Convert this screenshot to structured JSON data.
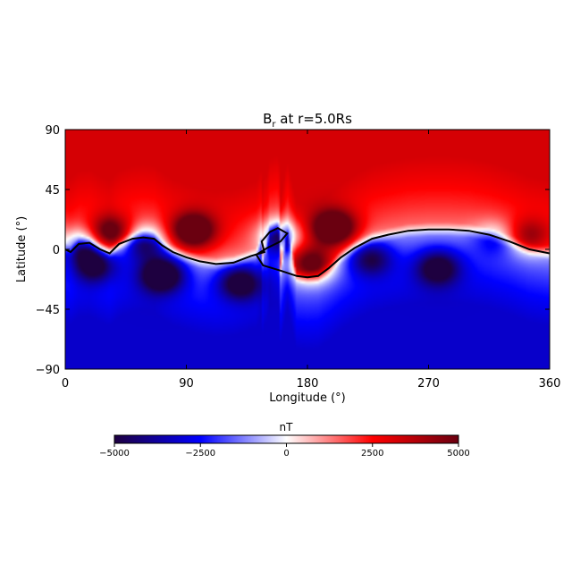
{
  "chart_data": {
    "type": "heatmap",
    "title": "B",
    "title_subscript": "r",
    "title_suffix": " at r=5.0Rs",
    "xlabel": "Longitude (°)",
    "ylabel": "Latitude (°)",
    "xlim": [
      0,
      360
    ],
    "ylim": [
      -90,
      90
    ],
    "xticks": [
      0,
      90,
      180,
      270,
      360
    ],
    "yticks": [
      -90,
      -45,
      0,
      45,
      90
    ],
    "xtick_labels": [
      "0",
      "90",
      "180",
      "270",
      "360"
    ],
    "ytick_labels": [
      "−90",
      "−45",
      "0",
      "45",
      "90"
    ],
    "colorbar": {
      "label": "nT",
      "range": [
        -5000,
        5000
      ],
      "ticks": [
        -5000,
        -2500,
        0,
        2500,
        5000
      ],
      "tick_labels": [
        "−5000",
        "−2500",
        "0",
        "2500",
        "5000"
      ],
      "colors": [
        "#1e0040",
        "#0000ff",
        "#ffffff",
        "#ff0000",
        "#6a0010"
      ]
    },
    "background_field": {
      "north_value": 3200,
      "south_value": -3200
    },
    "neutral_line": {
      "description": "zero contour",
      "color": "#000000",
      "points": [
        [
          0,
          0
        ],
        [
          4,
          -2
        ],
        [
          10,
          4
        ],
        [
          18,
          5
        ],
        [
          26,
          0
        ],
        [
          33,
          -3
        ],
        [
          40,
          4
        ],
        [
          50,
          8
        ],
        [
          58,
          9
        ],
        [
          66,
          8
        ],
        [
          72,
          3
        ],
        [
          80,
          -2
        ],
        [
          90,
          -6
        ],
        [
          100,
          -9
        ],
        [
          112,
          -11
        ],
        [
          125,
          -10
        ],
        [
          138,
          -5
        ],
        [
          148,
          -2
        ],
        [
          146,
          6
        ],
        [
          152,
          13
        ],
        [
          158,
          16
        ],
        [
          165,
          12
        ],
        [
          160,
          6
        ],
        [
          150,
          1
        ],
        [
          142,
          -4
        ],
        [
          147,
          -12
        ],
        [
          160,
          -16
        ],
        [
          172,
          -20
        ],
        [
          180,
          -21
        ],
        [
          188,
          -20
        ],
        [
          196,
          -14
        ],
        [
          205,
          -6
        ],
        [
          215,
          1
        ],
        [
          228,
          8
        ],
        [
          240,
          11
        ],
        [
          255,
          14
        ],
        [
          270,
          15
        ],
        [
          285,
          15
        ],
        [
          300,
          14
        ],
        [
          315,
          11
        ],
        [
          330,
          6
        ],
        [
          345,
          0
        ],
        [
          360,
          -3
        ]
      ]
    },
    "blobs": [
      {
        "lon": 34,
        "lat": 12,
        "value": 4200
      },
      {
        "lon": 95,
        "lat": 14,
        "value": 5200
      },
      {
        "lon": 200,
        "lat": 16,
        "value": 5400
      },
      {
        "lon": 183,
        "lat": -11,
        "value": 3800
      },
      {
        "lon": 345,
        "lat": 10,
        "value": 2500
      },
      {
        "lon": 72,
        "lat": -19,
        "value": -5200
      },
      {
        "lon": 130,
        "lat": -25,
        "value": -4300
      },
      {
        "lon": 22,
        "lat": -12,
        "value": -3900
      },
      {
        "lon": 58,
        "lat": 5,
        "value": -3300
      },
      {
        "lon": 160,
        "lat": 10,
        "value": -3400
      },
      {
        "lon": 227,
        "lat": -7,
        "value": -3200
      },
      {
        "lon": 277,
        "lat": -14,
        "value": -3800
      },
      {
        "lon": 12,
        "lat": 3,
        "value": -2800
      },
      {
        "lon": 320,
        "lat": 9,
        "value": -1600
      }
    ]
  }
}
